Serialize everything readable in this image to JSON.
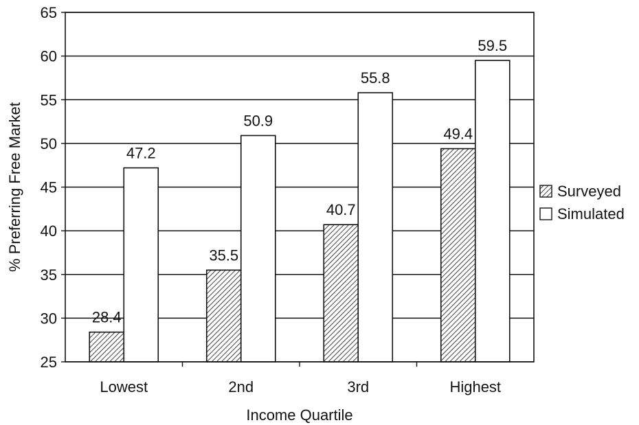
{
  "chart_data": {
    "type": "bar",
    "categories": [
      "Lowest",
      "2nd",
      "3rd",
      "Highest"
    ],
    "series": [
      {
        "name": "Surveyed",
        "values": [
          28.4,
          35.5,
          40.7,
          49.4
        ],
        "pattern": "hatched",
        "color": "#111111"
      },
      {
        "name": "Simulated",
        "values": [
          47.2,
          50.9,
          55.8,
          59.5
        ],
        "pattern": "solid",
        "color": "#ffffff"
      }
    ],
    "xlabel": "Income Quartile",
    "ylabel": "% Preferring Free Market",
    "ylim": [
      25,
      65
    ],
    "yticks": [
      25,
      30,
      35,
      40,
      45,
      50,
      55,
      60,
      65
    ],
    "grid": true,
    "legend_position": "right"
  }
}
